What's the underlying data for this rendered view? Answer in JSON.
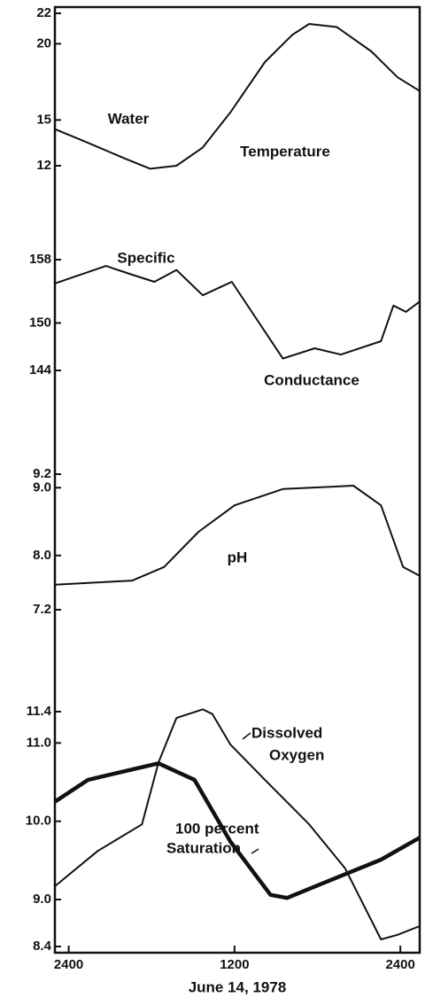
{
  "chart_data": [
    {
      "type": "line",
      "xlim": [
        -1,
        25.4
      ],
      "ylim": [
        12,
        22
      ],
      "yticks": [
        22,
        20,
        15,
        12
      ],
      "annotations": [
        "Water",
        "Temperature"
      ],
      "series": [
        {
          "color": "#111",
          "width": 2,
          "x": [
            -1.0,
            1.4,
            4.0,
            5.9,
            7.8,
            9.7,
            11.7,
            14.2,
            16.2,
            17.4,
            19.4,
            21.9,
            23.8,
            25.4
          ],
          "values": [
            14.4,
            13.5,
            12.5,
            11.8,
            12.0,
            13.2,
            15.5,
            18.8,
            20.6,
            21.3,
            21.1,
            19.5,
            17.8,
            16.9
          ]
        }
      ]
    },
    {
      "type": "line",
      "xlim": [
        -1,
        25.4
      ],
      "ylim": [
        144,
        158
      ],
      "yticks": [
        158,
        150,
        144
      ],
      "annotations": [
        "Specific",
        "Conductance"
      ],
      "series": [
        {
          "color": "#111",
          "width": 2,
          "x": [
            -1.0,
            2.7,
            4.6,
            6.2,
            7.8,
            9.7,
            11.8,
            15.5,
            17.8,
            19.7,
            22.6,
            23.5,
            24.4,
            25.4
          ],
          "values": [
            155,
            157.2,
            156.1,
            155.2,
            156.7,
            153.5,
            155.2,
            145.5,
            146.8,
            146,
            147.7,
            152.2,
            151.4,
            152.7
          ]
        }
      ]
    },
    {
      "type": "line",
      "xlim": [
        -1,
        25.4
      ],
      "ylim": [
        7.2,
        9.2
      ],
      "yticks": [
        9.2,
        {
          "value": 9,
          "label": "9.0"
        },
        {
          "value": 8,
          "label": "8.0"
        },
        7.2
      ],
      "annotations": [
        "pH"
      ],
      "series": [
        {
          "color": "#111",
          "width": 2,
          "x": [
            -1.0,
            4.6,
            6.9,
            9.4,
            12.0,
            15.5,
            20.6,
            22.6,
            24.2,
            25.4
          ],
          "values": [
            7.57,
            7.63,
            7.83,
            8.35,
            8.74,
            8.98,
            9.03,
            8.74,
            7.83,
            7.7
          ]
        }
      ]
    },
    {
      "type": "line",
      "xlim": [
        -1,
        25.4
      ],
      "ylim": [
        8.4,
        11.4
      ],
      "yticks": [
        11.4,
        {
          "value": 11,
          "label": "11.0"
        },
        {
          "value": 10,
          "label": "10.0"
        },
        {
          "value": 9,
          "label": "9.0"
        },
        8.4
      ],
      "xticks": [
        {
          "value": 0,
          "label": "2400"
        },
        {
          "value": 12,
          "label": "1200"
        },
        {
          "value": 24,
          "label": "2400"
        }
      ],
      "xlabel": "June 14, 1978",
      "annotations": [
        "Dissolved",
        "Oxygen",
        "100 percent",
        "Saturation"
      ],
      "series": [
        {
          "color": "#111",
          "width": 2,
          "x": [
            -1.0,
            2.1,
            5.3,
            6.5,
            7.8,
            9.7,
            10.4,
            11.7,
            14.2,
            17.4,
            20.0,
            22.6,
            23.8,
            25.4
          ],
          "values": [
            9.17,
            9.62,
            9.96,
            10.75,
            11.32,
            11.43,
            11.37,
            10.98,
            10.53,
            9.96,
            9.4,
            8.49,
            8.55,
            8.66
          ]
        },
        {
          "color": "#111",
          "width": 4.5,
          "x": [
            -1.0,
            1.4,
            6.5,
            9.1,
            11.7,
            14.6,
            15.8,
            18.7,
            22.6,
            25.4
          ],
          "values": [
            10.25,
            10.53,
            10.74,
            10.53,
            9.74,
            9.06,
            9.02,
            9.23,
            9.51,
            9.79
          ]
        }
      ]
    }
  ]
}
